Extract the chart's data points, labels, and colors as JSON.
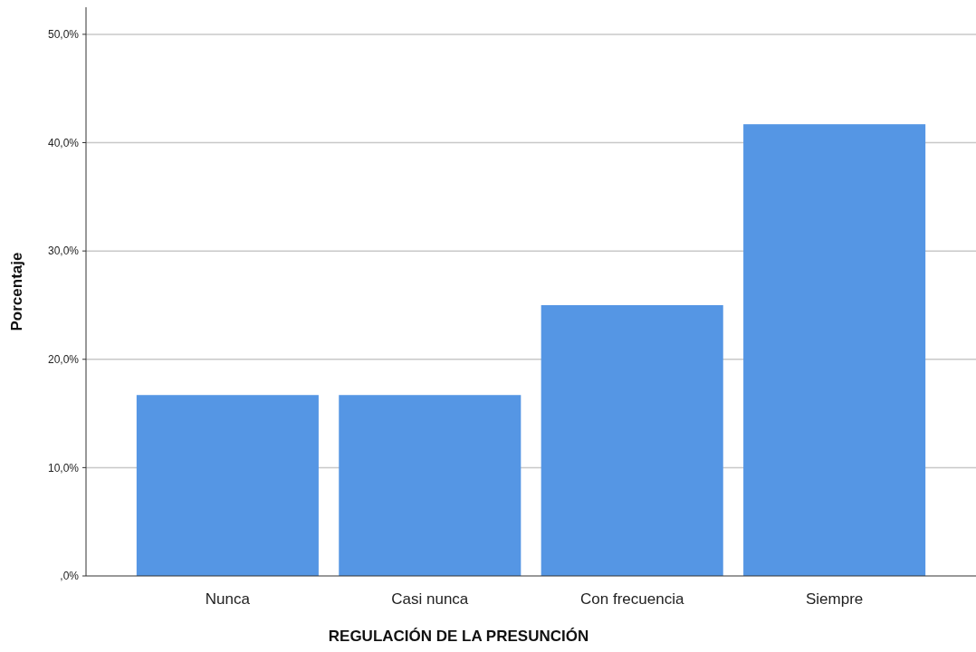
{
  "chart_data": {
    "type": "bar",
    "xlabel": "REGULACIÓN DE LA PRESUNCIÓN",
    "ylabel": "Porcentaje",
    "categories": [
      "Nunca",
      "Casi nunca",
      "Con frecuencia",
      "Siempre"
    ],
    "values": [
      16.7,
      16.7,
      25.0,
      41.7
    ],
    "color": "#5596e4",
    "ylim": [
      0,
      52.5
    ],
    "yticks": [
      {
        "value": 0,
        "label": ",0%"
      },
      {
        "value": 10,
        "label": "10,0%"
      },
      {
        "value": 20,
        "label": "20,0%"
      },
      {
        "value": 30,
        "label": "30,0%"
      },
      {
        "value": 40,
        "label": "40,0%"
      },
      {
        "value": 50,
        "label": "50,0%"
      }
    ],
    "grid": "y"
  }
}
